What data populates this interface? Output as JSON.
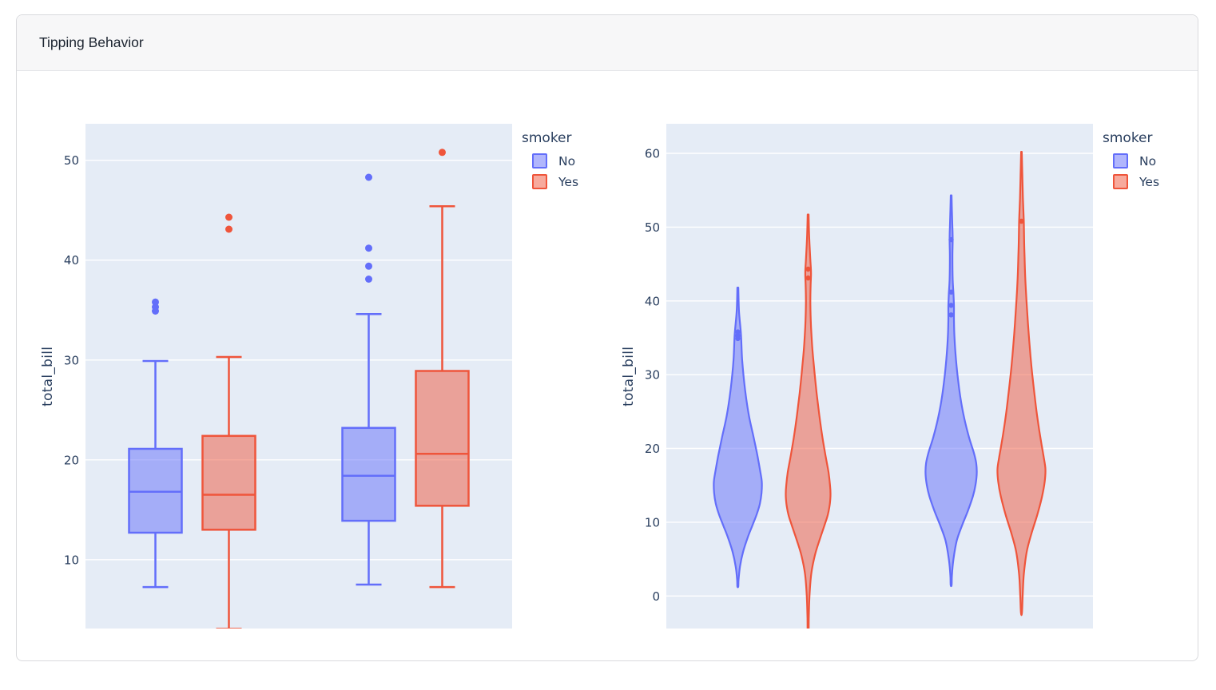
{
  "card": {
    "title": "Tipping Behavior"
  },
  "colors": {
    "no": "#636EFA",
    "no_fill": "rgba(99,110,250,0.5)",
    "yes": "#EF553B",
    "yes_fill": "rgba(239,85,59,0.5)",
    "plot_bg": "#E5ECF6",
    "grid": "#FFFFFF",
    "text": "#2A3F5F"
  },
  "legend": {
    "title": "smoker",
    "items": [
      {
        "label": "No"
      },
      {
        "label": "Yes"
      }
    ]
  },
  "chart_data": [
    {
      "type": "box",
      "ylabel": "total_bill",
      "yticks": [
        10,
        20,
        30,
        40,
        50
      ],
      "ylim": [
        3.1,
        53.66
      ],
      "grid": true,
      "legend_position": "right",
      "legend_title": "smoker",
      "series_names": [
        "No",
        "Yes"
      ],
      "x_tick_labels_visible": false,
      "groups": [
        {
          "boxes": [
            {
              "series": "No",
              "whisker_low": 7.25,
              "q1": 12.7,
              "median": 16.8,
              "q3": 21.1,
              "whisker_high": 29.9,
              "outliers": [
                34.9,
                35.3,
                35.8
              ]
            },
            {
              "series": "Yes",
              "whisker_low": 3.07,
              "q1": 13.0,
              "median": 16.5,
              "q3": 22.4,
              "whisker_high": 30.3,
              "outliers": [
                43.1,
                44.3
              ]
            }
          ]
        },
        {
          "boxes": [
            {
              "series": "No",
              "whisker_low": 7.5,
              "q1": 13.9,
              "median": 18.4,
              "q3": 23.2,
              "whisker_high": 34.6,
              "outliers": [
                38.1,
                39.4,
                41.2,
                48.3
              ]
            },
            {
              "series": "Yes",
              "whisker_low": 7.25,
              "q1": 15.4,
              "median": 20.6,
              "q3": 28.9,
              "whisker_high": 45.4,
              "outliers": [
                50.8
              ]
            }
          ]
        }
      ]
    },
    {
      "type": "violin",
      "ylabel": "total_bill",
      "yticks": [
        0,
        10,
        20,
        30,
        40,
        50,
        60
      ],
      "ylim": [
        -4.4,
        64.0
      ],
      "grid": true,
      "legend_position": "right",
      "legend_title": "smoker",
      "series_names": [
        "No",
        "Yes"
      ],
      "x_tick_labels_visible": false,
      "groups": [
        {
          "violins": [
            {
              "series": "No",
              "span": [
                1.3,
                41.8
              ],
              "peak": 15.5,
              "points": [
                34.9,
                35.3,
                35.8
              ],
              "profile": [
                [
                  41.8,
                  0.02
                ],
                [
                  38.5,
                  0.05
                ],
                [
                  35.5,
                  0.13
                ],
                [
                  32,
                  0.18
                ],
                [
                  28,
                  0.3
                ],
                [
                  24.5,
                  0.46
                ],
                [
                  21.5,
                  0.66
                ],
                [
                  19,
                  0.82
                ],
                [
                  17,
                  0.93
                ],
                [
                  15.5,
                  1.0
                ],
                [
                  14,
                  0.99
                ],
                [
                  12.5,
                  0.92
                ],
                [
                  11,
                  0.78
                ],
                [
                  9.5,
                  0.6
                ],
                [
                  8,
                  0.42
                ],
                [
                  6,
                  0.22
                ],
                [
                  4,
                  0.09
                ],
                [
                  2.2,
                  0.03
                ],
                [
                  1.3,
                  0.02
                ]
              ]
            },
            {
              "series": "Yes",
              "span": [
                -4.8,
                51.7
              ],
              "peak": 13.8,
              "points": [
                43.1,
                44.3
              ],
              "profile": [
                [
                  51.7,
                  0.02
                ],
                [
                  48.5,
                  0.05
                ],
                [
                  45.5,
                  0.1
                ],
                [
                  43.8,
                  0.13
                ],
                [
                  42,
                  0.11
                ],
                [
                  39.5,
                  0.1
                ],
                [
                  36.5,
                  0.13
                ],
                [
                  33.5,
                  0.19
                ],
                [
                  30.5,
                  0.28
                ],
                [
                  27.5,
                  0.38
                ],
                [
                  24.5,
                  0.5
                ],
                [
                  21.5,
                  0.64
                ],
                [
                  19,
                  0.78
                ],
                [
                  16.8,
                  0.91
                ],
                [
                  15,
                  0.98
                ],
                [
                  13.8,
                  1.0
                ],
                [
                  12.5,
                  0.97
                ],
                [
                  11,
                  0.88
                ],
                [
                  9.5,
                  0.72
                ],
                [
                  7.5,
                  0.5
                ],
                [
                  5.5,
                  0.3
                ],
                [
                  3,
                  0.14
                ],
                [
                  0,
                  0.06
                ],
                [
                  -3,
                  0.03
                ],
                [
                  -4.8,
                  0.02
                ]
              ]
            }
          ]
        },
        {
          "violins": [
            {
              "series": "No",
              "span": [
                1.5,
                54.3
              ],
              "peak": 16.5,
              "points": [
                38.1,
                39.4,
                41.2,
                48.3
              ],
              "profile": [
                [
                  54.3,
                  0.015
                ],
                [
                  51,
                  0.04
                ],
                [
                  48.5,
                  0.06
                ],
                [
                  46,
                  0.05
                ],
                [
                  43,
                  0.06
                ],
                [
                  41,
                  0.09
                ],
                [
                  39.3,
                  0.11
                ],
                [
                  37.5,
                  0.11
                ],
                [
                  35,
                  0.13
                ],
                [
                  32,
                  0.19
                ],
                [
                  29,
                  0.28
                ],
                [
                  26.5,
                  0.38
                ],
                [
                  24,
                  0.52
                ],
                [
                  21.5,
                  0.7
                ],
                [
                  19.5,
                  0.88
                ],
                [
                  18,
                  0.98
                ],
                [
                  16.5,
                  1.0
                ],
                [
                  15,
                  0.95
                ],
                [
                  13.5,
                  0.85
                ],
                [
                  11.5,
                  0.65
                ],
                [
                  9.5,
                  0.42
                ],
                [
                  7.5,
                  0.22
                ],
                [
                  5,
                  0.09
                ],
                [
                  2.8,
                  0.03
                ],
                [
                  1.5,
                  0.02
                ]
              ]
            },
            {
              "series": "Yes",
              "span": [
                -2.3,
                60.2
              ],
              "peak": 17.2,
              "points": [
                50.8
              ],
              "profile": [
                [
                  60.2,
                  0.015
                ],
                [
                  57,
                  0.035
                ],
                [
                  54,
                  0.06
                ],
                [
                  51.5,
                  0.09
                ],
                [
                  50.5,
                  0.1
                ],
                [
                  48.5,
                  0.11
                ],
                [
                  46,
                  0.13
                ],
                [
                  43,
                  0.16
                ],
                [
                  40,
                  0.21
                ],
                [
                  37,
                  0.27
                ],
                [
                  34,
                  0.34
                ],
                [
                  31,
                  0.42
                ],
                [
                  28,
                  0.52
                ],
                [
                  25,
                  0.63
                ],
                [
                  22.5,
                  0.74
                ],
                [
                  20.5,
                  0.84
                ],
                [
                  18.8,
                  0.93
                ],
                [
                  17.2,
                  1.0
                ],
                [
                  15.5,
                  0.97
                ],
                [
                  13.5,
                  0.86
                ],
                [
                  11,
                  0.66
                ],
                [
                  8.5,
                  0.42
                ],
                [
                  6,
                  0.22
                ],
                [
                  3,
                  0.1
                ],
                [
                  0,
                  0.05
                ],
                [
                  -2.3,
                  0.02
                ]
              ]
            }
          ]
        }
      ]
    }
  ]
}
